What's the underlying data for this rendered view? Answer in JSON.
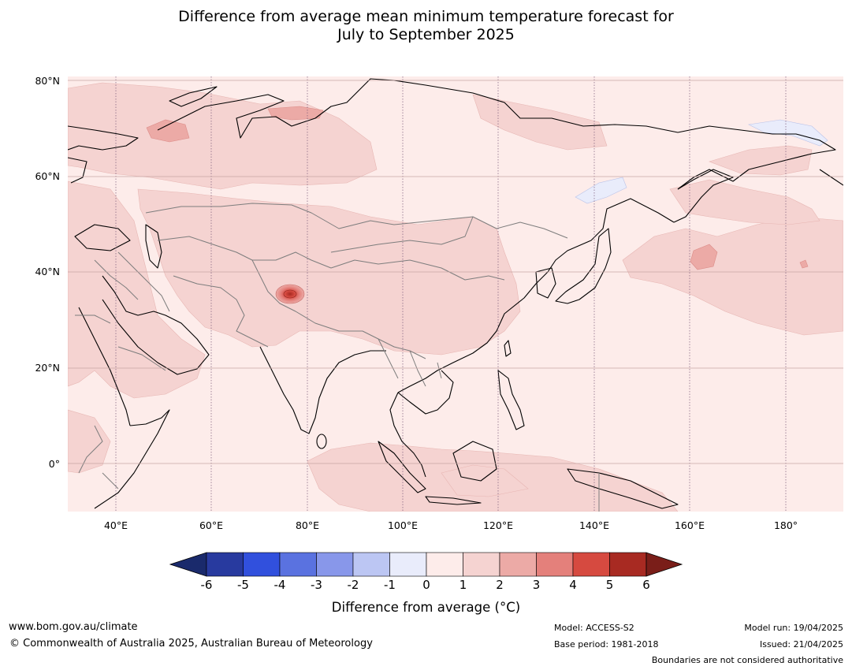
{
  "title_line1": "Difference from average mean minimum temperature forecast for",
  "title_line2": "July to September 2025",
  "map": {
    "latitude_labels": [
      "80°N",
      "60°N",
      "40°N",
      "20°N",
      "0°"
    ],
    "longitude_labels": [
      "40°E",
      "60°E",
      "80°E",
      "100°E",
      "120°E",
      "140°E",
      "160°E",
      "180°"
    ],
    "region": "Asia, Middle East, Western Pacific",
    "hotspot_value_c": 5
  },
  "colorbar": {
    "ticks": [
      "-6",
      "-5",
      "-4",
      "-3",
      "-2",
      "-1",
      "0",
      "1",
      "2",
      "3",
      "4",
      "5",
      "6"
    ],
    "colors": [
      "#283a9f",
      "#3150dd",
      "#5a72e0",
      "#8897ea",
      "#bcc6f3",
      "#e9ecfb",
      "#fdecea",
      "#f5d3d1",
      "#ecaaa6",
      "#e4807b",
      "#d64a40",
      "#a82a22"
    ],
    "low_extend_color": "#1a2a6c",
    "high_extend_color": "#7a1e19",
    "label": "Difference from average (°C)"
  },
  "footer": {
    "website": "www.bom.gov.au/climate",
    "copyright": "© Commonwealth of Australia 2025, Australian Bureau of Meteorology",
    "model": "Model: ACCESS-S2",
    "base_period": "Base period: 1981-2018",
    "model_run": "Model run: 19/04/2025",
    "issued": "Issued: 21/04/2025",
    "disclaimer": "Boundaries are not considered authoritative"
  }
}
